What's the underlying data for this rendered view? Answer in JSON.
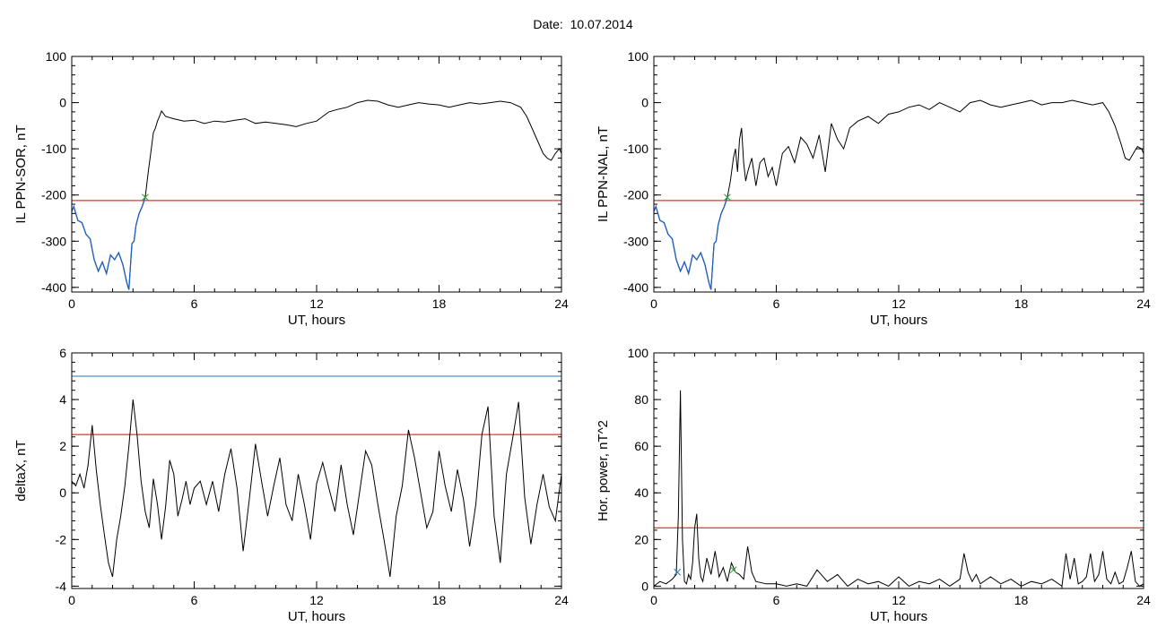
{
  "page": {
    "date_label": "Date:",
    "date_value": "10.07.2014"
  },
  "chart_data": [
    {
      "type": "line",
      "xlabel": "UT, hours",
      "ylabel": "IL PPN-SOR, nT",
      "xlim": [
        0,
        24
      ],
      "ylim": [
        -410,
        100
      ],
      "xticks": [
        0,
        6,
        12,
        18,
        24
      ],
      "yticks": [
        -400,
        -300,
        -200,
        -100,
        0,
        100
      ],
      "threshold": {
        "value": -212,
        "color": "#e00000"
      },
      "series": [
        {
          "color": "#000000",
          "x": [
            0,
            0.1,
            0.2,
            0.3,
            0.5,
            0.7,
            0.9,
            1.1,
            1.3,
            1.5,
            1.7,
            1.9,
            2.1,
            2.3,
            2.5,
            2.7,
            2.8,
            2.95,
            3.05,
            3.15,
            3.3,
            3.45,
            3.6,
            3.75,
            3.9,
            4.0,
            4.1,
            4.2,
            4.3,
            4.4,
            4.6,
            5.0,
            5.5,
            6,
            6.5,
            7,
            7.5,
            8,
            8.5,
            9,
            9.5,
            10,
            10.5,
            11,
            11.5,
            12,
            12.3,
            12.6,
            13,
            13.5,
            14,
            14.5,
            15,
            15.5,
            16,
            16.5,
            17,
            17.5,
            18,
            18.5,
            19,
            19.5,
            20,
            20.5,
            21,
            21.5,
            22,
            22.3,
            22.6,
            22.9,
            23.1,
            23.3,
            23.5,
            23.7,
            23.9,
            24
          ],
          "y": [
            -235,
            -225,
            -240,
            -255,
            -260,
            -285,
            -295,
            -340,
            -365,
            -345,
            -370,
            -330,
            -340,
            -325,
            -350,
            -390,
            -405,
            -305,
            -300,
            -265,
            -240,
            -225,
            -205,
            -150,
            -100,
            -65,
            -55,
            -40,
            -30,
            -18,
            -30,
            -35,
            -40,
            -38,
            -45,
            -40,
            -42,
            -38,
            -35,
            -45,
            -42,
            -45,
            -48,
            -52,
            -45,
            -40,
            -30,
            -20,
            -15,
            -10,
            0,
            5,
            3,
            -5,
            -10,
            -5,
            0,
            -3,
            -5,
            -10,
            -5,
            0,
            -3,
            0,
            3,
            0,
            -10,
            -30,
            -60,
            -90,
            -110,
            -120,
            -125,
            -110,
            -100,
            -110
          ]
        },
        {
          "color": "#1f5fbf",
          "x": [
            0,
            0.1,
            0.2,
            0.3,
            0.5,
            0.7,
            0.9,
            1.1,
            1.3,
            1.5,
            1.7,
            1.9,
            2.1,
            2.3,
            2.5,
            2.7,
            2.8,
            2.95,
            3.05,
            3.15,
            3.3,
            3.45,
            3.6
          ],
          "y": [
            -235,
            -225,
            -240,
            -255,
            -260,
            -285,
            -295,
            -340,
            -365,
            -345,
            -370,
            -330,
            -340,
            -325,
            -350,
            -390,
            -405,
            -305,
            -300,
            -265,
            -240,
            -225,
            -205
          ]
        }
      ],
      "markers": [
        {
          "x": 3.6,
          "y": -205,
          "color": "#2ca02c"
        }
      ]
    },
    {
      "type": "line",
      "xlabel": "UT, hours",
      "ylabel": "IL PPN-NAL, nT",
      "xlim": [
        0,
        24
      ],
      "ylim": [
        -410,
        100
      ],
      "xticks": [
        0,
        6,
        12,
        18,
        24
      ],
      "yticks": [
        -400,
        -300,
        -200,
        -100,
        0,
        100
      ],
      "threshold": {
        "value": -212,
        "color": "#e00000"
      },
      "series": [
        {
          "color": "#000000",
          "x": [
            0,
            0.1,
            0.2,
            0.3,
            0.5,
            0.7,
            0.9,
            1.1,
            1.3,
            1.5,
            1.7,
            1.9,
            2.1,
            2.3,
            2.5,
            2.7,
            2.8,
            2.95,
            3.05,
            3.15,
            3.3,
            3.45,
            3.6,
            3.75,
            3.9,
            4.0,
            4.1,
            4.2,
            4.3,
            4.4,
            4.5,
            4.6,
            4.8,
            5.0,
            5.2,
            5.4,
            5.6,
            5.8,
            6.0,
            6.3,
            6.6,
            6.9,
            7.2,
            7.5,
            7.8,
            8.1,
            8.4,
            8.7,
            9.0,
            9.3,
            9.6,
            10,
            10.5,
            11,
            11.5,
            12,
            12.5,
            13,
            13.5,
            14,
            14.5,
            15,
            15.5,
            16,
            16.5,
            17,
            17.5,
            18,
            18.5,
            19,
            19.5,
            20,
            20.5,
            21,
            21.5,
            22,
            22.3,
            22.6,
            22.9,
            23.1,
            23.3,
            23.5,
            23.7,
            23.9,
            24
          ],
          "y": [
            -235,
            -225,
            -240,
            -255,
            -260,
            -285,
            -295,
            -340,
            -365,
            -345,
            -370,
            -330,
            -340,
            -325,
            -350,
            -390,
            -405,
            -305,
            -300,
            -265,
            -240,
            -225,
            -205,
            -170,
            -120,
            -100,
            -150,
            -80,
            -55,
            -130,
            -170,
            -150,
            -120,
            -180,
            -130,
            -120,
            -160,
            -140,
            -180,
            -110,
            -95,
            -130,
            -75,
            -90,
            -120,
            -70,
            -150,
            -45,
            -80,
            -100,
            -55,
            -40,
            -30,
            -45,
            -25,
            -20,
            -10,
            -5,
            -15,
            0,
            -10,
            -20,
            0,
            5,
            -5,
            -10,
            -5,
            0,
            5,
            -5,
            0,
            0,
            5,
            0,
            -5,
            0,
            -20,
            -50,
            -90,
            -120,
            -125,
            -110,
            -95,
            -100,
            -110
          ]
        },
        {
          "color": "#1f5fbf",
          "x": [
            0,
            0.1,
            0.2,
            0.3,
            0.5,
            0.7,
            0.9,
            1.1,
            1.3,
            1.5,
            1.7,
            1.9,
            2.1,
            2.3,
            2.5,
            2.7,
            2.8,
            2.95,
            3.05,
            3.15,
            3.3,
            3.45,
            3.6
          ],
          "y": [
            -235,
            -225,
            -240,
            -255,
            -260,
            -285,
            -295,
            -340,
            -365,
            -345,
            -370,
            -330,
            -340,
            -325,
            -350,
            -390,
            -405,
            -305,
            -300,
            -265,
            -240,
            -225,
            -205
          ]
        }
      ],
      "markers": [
        {
          "x": 3.6,
          "y": -205,
          "color": "#2ca02c"
        }
      ]
    },
    {
      "type": "line",
      "xlabel": "UT, hours",
      "ylabel": "deltaX, nT",
      "xlim": [
        0,
        24
      ],
      "ylim": [
        -4.1,
        6
      ],
      "xticks": [
        0,
        6,
        12,
        18,
        24
      ],
      "yticks": [
        -4,
        -2,
        0,
        2,
        4,
        6
      ],
      "threshold": {
        "value": 2.5,
        "color": "#e00000"
      },
      "threshold2": {
        "value": 5,
        "color": "#1f77b4"
      },
      "series": [
        {
          "color": "#000000",
          "x": [
            0,
            0.2,
            0.4,
            0.6,
            0.8,
            1.0,
            1.2,
            1.4,
            1.6,
            1.8,
            2.0,
            2.2,
            2.4,
            2.6,
            2.8,
            3.0,
            3.2,
            3.4,
            3.6,
            3.8,
            4.0,
            4.2,
            4.4,
            4.6,
            4.8,
            5.0,
            5.2,
            5.4,
            5.6,
            5.8,
            6.0,
            6.3,
            6.6,
            6.9,
            7.2,
            7.5,
            7.8,
            8.1,
            8.4,
            8.7,
            9.0,
            9.3,
            9.6,
            9.9,
            10.2,
            10.5,
            10.8,
            11.1,
            11.4,
            11.7,
            12.0,
            12.3,
            12.6,
            12.9,
            13.2,
            13.5,
            13.8,
            14.1,
            14.4,
            14.7,
            15.0,
            15.3,
            15.6,
            15.9,
            16.2,
            16.5,
            16.8,
            17.1,
            17.4,
            17.7,
            18.0,
            18.3,
            18.6,
            18.9,
            19.2,
            19.5,
            19.8,
            20.1,
            20.4,
            20.7,
            21.0,
            21.3,
            21.6,
            21.9,
            22.2,
            22.5,
            22.8,
            23.1,
            23.4,
            23.7,
            24
          ],
          "y": [
            0.5,
            0.3,
            0.8,
            0.2,
            1.2,
            2.9,
            1.0,
            -0.5,
            -1.8,
            -3.0,
            -3.6,
            -2.0,
            -1.0,
            0.3,
            2.0,
            4.0,
            2.5,
            0.5,
            -0.8,
            -1.5,
            0.6,
            -0.5,
            -2.0,
            -0.6,
            1.4,
            0.8,
            -1.0,
            -0.3,
            0.5,
            -0.5,
            0.2,
            0.5,
            -0.5,
            0.5,
            -0.8,
            0.8,
            1.9,
            0.2,
            -2.5,
            -0.3,
            2.1,
            0.5,
            -1.0,
            0.3,
            1.5,
            -0.5,
            -1.2,
            0.8,
            -0.5,
            -2.0,
            0.4,
            1.3,
            0.2,
            -0.8,
            1.2,
            -0.5,
            -1.8,
            0.0,
            1.8,
            1.2,
            -0.5,
            -2.0,
            -3.6,
            -1.0,
            0.3,
            2.7,
            1.5,
            0.0,
            -1.5,
            -0.8,
            1.8,
            0.3,
            -0.8,
            1.0,
            -0.3,
            -2.3,
            -0.5,
            2.5,
            3.7,
            -1.0,
            -3.0,
            0.8,
            2.3,
            3.9,
            -0.2,
            -2.2,
            -0.5,
            0.8,
            -0.6,
            -1.2,
            0.8
          ]
        }
      ]
    },
    {
      "type": "line",
      "xlabel": "UT, hours",
      "ylabel": "Hor. power, nT^2",
      "xlim": [
        0,
        24
      ],
      "ylim": [
        -1,
        100
      ],
      "xticks": [
        0,
        6,
        12,
        18,
        24
      ],
      "yticks": [
        0,
        20,
        40,
        60,
        80,
        100
      ],
      "threshold": {
        "value": 25,
        "color": "#e00000"
      },
      "series": [
        {
          "color": "#000000",
          "x": [
            0,
            0.3,
            0.6,
            0.9,
            1.1,
            1.2,
            1.3,
            1.4,
            1.5,
            1.6,
            1.7,
            1.8,
            1.9,
            2.0,
            2.1,
            2.2,
            2.3,
            2.4,
            2.6,
            2.8,
            3.0,
            3.2,
            3.4,
            3.6,
            3.8,
            4.0,
            4.2,
            4.4,
            4.6,
            4.8,
            5.0,
            5.5,
            6.0,
            6.5,
            7.0,
            7.5,
            8.0,
            8.5,
            9.0,
            9.5,
            10,
            10.5,
            11,
            11.5,
            12,
            12.5,
            13,
            13.5,
            14,
            14.5,
            15,
            15.2,
            15.4,
            15.6,
            15.8,
            16,
            16.5,
            17,
            17.5,
            18,
            18.5,
            19,
            19.5,
            20,
            20.2,
            20.4,
            20.6,
            20.8,
            21,
            21.2,
            21.4,
            21.6,
            21.8,
            22,
            22.2,
            22.4,
            22.6,
            22.8,
            23,
            23.2,
            23.4,
            23.6,
            23.8,
            24
          ],
          "y": [
            0,
            2,
            1,
            3,
            5,
            30,
            84,
            20,
            2,
            1,
            5,
            3,
            10,
            25,
            31,
            12,
            4,
            2,
            12,
            5,
            15,
            4,
            8,
            2,
            10,
            6,
            5,
            3,
            17,
            6,
            2,
            1,
            1,
            0,
            1,
            0,
            7,
            2,
            5,
            0,
            3,
            1,
            2,
            0,
            4,
            0,
            2,
            1,
            3,
            0,
            3,
            14,
            6,
            2,
            5,
            1,
            4,
            1,
            3,
            0,
            2,
            1,
            3,
            0,
            14,
            3,
            12,
            1,
            2,
            4,
            14,
            2,
            5,
            15,
            3,
            1,
            6,
            1,
            2,
            8,
            15,
            2,
            0,
            1
          ]
        }
      ],
      "markers": [
        {
          "x": 1.15,
          "y": 6,
          "color": "#1f77b4"
        },
        {
          "x": 3.9,
          "y": 7,
          "color": "#2ca02c"
        }
      ]
    }
  ]
}
